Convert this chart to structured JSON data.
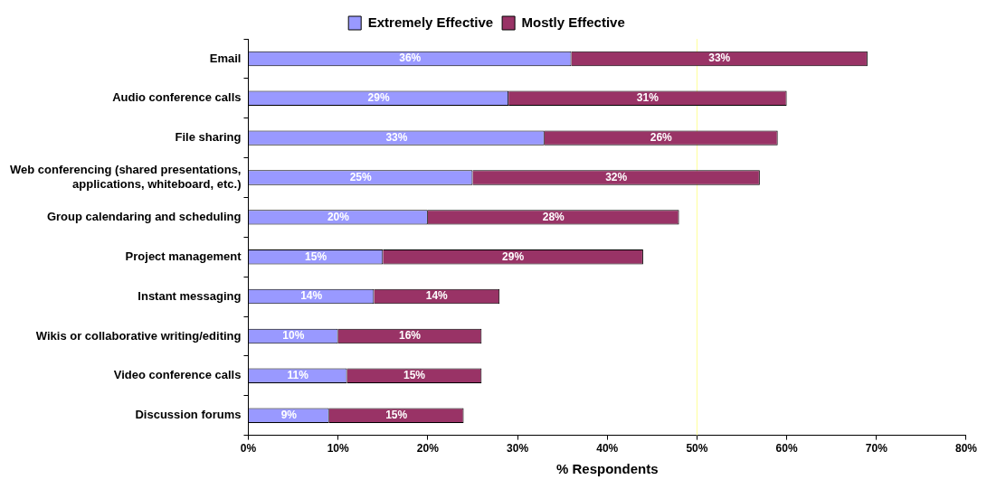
{
  "chart_data": {
    "type": "bar",
    "orientation": "horizontal",
    "stacked": true,
    "xlabel": "% Respondents",
    "categories": [
      "Email",
      "Audio conference calls",
      "File sharing",
      "Web conferencing (shared presentations, applications, whiteboard, etc.)",
      "Group calendaring and scheduling",
      "Project management",
      "Instant messaging",
      "Wikis or collaborative writing/editing",
      "Video conference calls",
      "Discussion forums"
    ],
    "series": [
      {
        "name": "Extremely Effective",
        "color": "#9999ff",
        "values": [
          36,
          29,
          33,
          25,
          20,
          15,
          14,
          10,
          11,
          9
        ],
        "value_labels": [
          "36%",
          "29%",
          "33%",
          "25%",
          "20%",
          "15%",
          "14%",
          "10%",
          "11%",
          "9%"
        ]
      },
      {
        "name": "Mostly Effective",
        "color": "#993366",
        "values": [
          33,
          31,
          26,
          32,
          28,
          29,
          14,
          16,
          15,
          15
        ],
        "value_labels": [
          "33%",
          "31%",
          "26%",
          "32%",
          "28%",
          "29%",
          "14%",
          "16%",
          "15%",
          "15%"
        ]
      }
    ],
    "xlim": [
      0,
      80
    ],
    "xticks": [
      {
        "value": 0,
        "label": "0%"
      },
      {
        "value": 10,
        "label": "10%"
      },
      {
        "value": 20,
        "label": "20%"
      },
      {
        "value": 30,
        "label": "30%"
      },
      {
        "value": 40,
        "label": "40%"
      },
      {
        "value": 50,
        "label": "50%"
      },
      {
        "value": 60,
        "label": "60%"
      },
      {
        "value": 70,
        "label": "70%"
      },
      {
        "value": 80,
        "label": "80%"
      }
    ],
    "ref_lines": [
      {
        "axis": "x",
        "value": 50,
        "color": "#ffff99"
      }
    ],
    "grid": false,
    "legend": "top"
  }
}
